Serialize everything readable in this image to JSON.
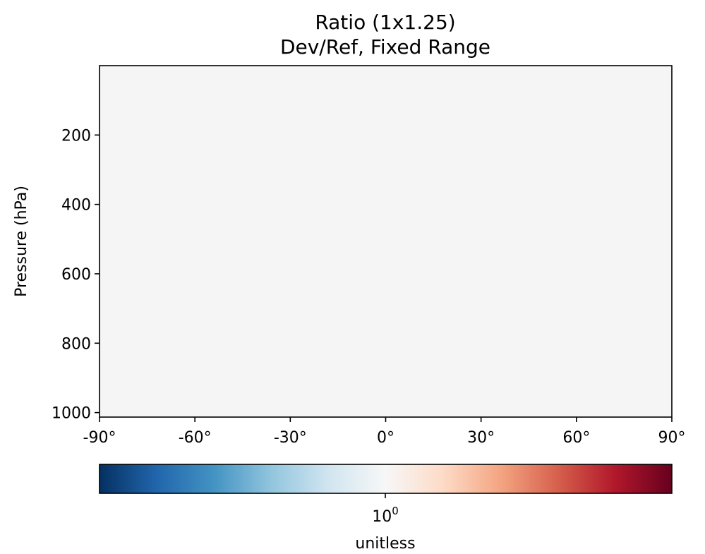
{
  "chart_data": {
    "type": "heatmap",
    "title": "Ratio (1x1.25)",
    "subtitle": "Dev/Ref, Fixed Range",
    "xlabel": "",
    "ylabel": "Pressure (hPa)",
    "x_ticks": [
      {
        "value": -90,
        "label": "-90°"
      },
      {
        "value": -60,
        "label": "-60°"
      },
      {
        "value": -30,
        "label": "-30°"
      },
      {
        "value": 0,
        "label": "0°"
      },
      {
        "value": 30,
        "label": "30°"
      },
      {
        "value": 60,
        "label": "60°"
      },
      {
        "value": 90,
        "label": "90°"
      }
    ],
    "y_ticks": [
      {
        "value": 200,
        "label": "200"
      },
      {
        "value": 400,
        "label": "400"
      },
      {
        "value": 600,
        "label": "600"
      },
      {
        "value": 800,
        "label": "800"
      },
      {
        "value": 1000,
        "label": "1000"
      }
    ],
    "xlim": [
      -90,
      90
    ],
    "ylim": [
      1013,
      0
    ],
    "y_inverted": true,
    "grid": false,
    "field_value": 1.0,
    "field_color": "#f5f5f5",
    "colorbar": {
      "colormap": "RdBu_r",
      "colors": [
        "#053061",
        "#2166ac",
        "#4393c3",
        "#92c5de",
        "#d1e5f0",
        "#f7f7f7",
        "#fddbc7",
        "#f4a582",
        "#d6604d",
        "#b2182b",
        "#67001f"
      ],
      "scale": "log",
      "center": 1.0,
      "tick_base": "10",
      "tick_exponent": "0",
      "label": "unitless",
      "orientation": "horizontal",
      "placement": "bottom"
    }
  }
}
